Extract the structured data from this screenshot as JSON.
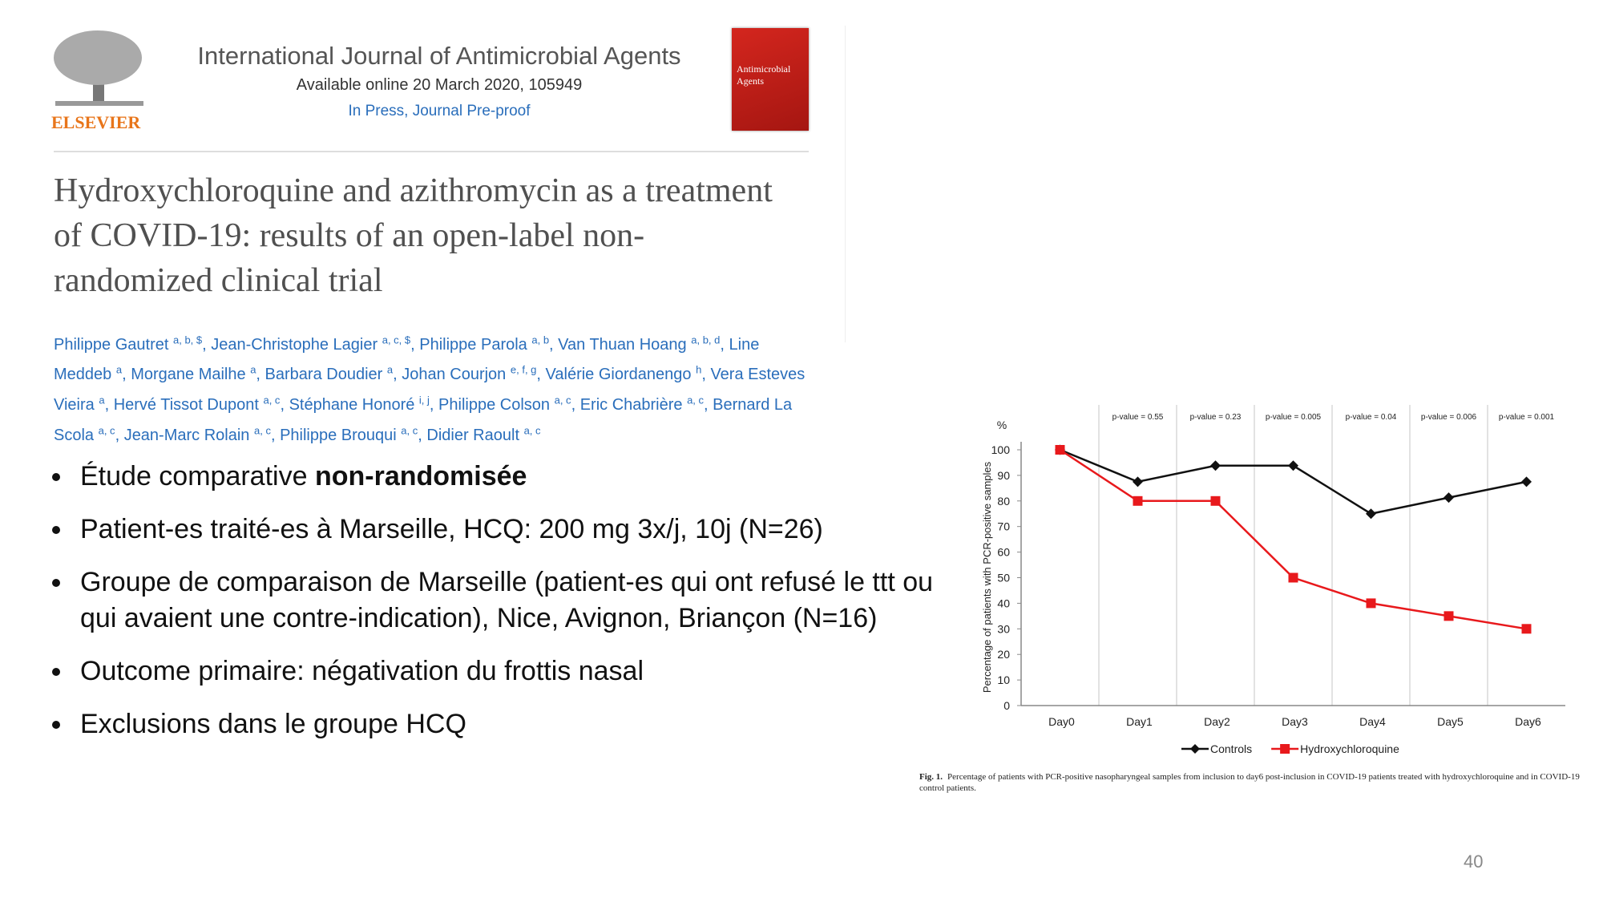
{
  "header": {
    "publisher": "ELSEVIER",
    "journal": "International Journal of Antimicrobial Agents",
    "availability": "Available online 20 March 2020, 105949",
    "status": "In Press, Journal Pre-proof",
    "cover_title": "Antimicrobial Agents"
  },
  "article": {
    "title": "Hydroxychloroquine and azithromycin as a treatment of COVID-19: results of an open-label non-randomized clinical trial",
    "authors": [
      {
        "name": "Philippe Gautret",
        "affiliations": "a, b, $"
      },
      {
        "name": "Jean-Christophe Lagier",
        "affiliations": "a, c, $"
      },
      {
        "name": "Philippe Parola",
        "affiliations": "a, b"
      },
      {
        "name": "Van Thuan Hoang",
        "affiliations": "a, b, d"
      },
      {
        "name": "Line Meddeb",
        "affiliations": "a"
      },
      {
        "name": "Morgane Mailhe",
        "affiliations": "a"
      },
      {
        "name": "Barbara Doudier",
        "affiliations": "a"
      },
      {
        "name": "Johan Courjon",
        "affiliations": "e, f, g"
      },
      {
        "name": "Valérie Giordanengo",
        "affiliations": "h"
      },
      {
        "name": "Vera Esteves Vieira",
        "affiliations": "a"
      },
      {
        "name": "Hervé Tissot Dupont",
        "affiliations": "a, c"
      },
      {
        "name": "Stéphane Honoré",
        "affiliations": "i, j"
      },
      {
        "name": "Philippe Colson",
        "affiliations": "a, c"
      },
      {
        "name": "Eric Chabrière",
        "affiliations": "a, c"
      },
      {
        "name": "Bernard La Scola",
        "affiliations": "a, c"
      },
      {
        "name": "Jean-Marc Rolain",
        "affiliations": "a, c"
      },
      {
        "name": "Philippe Brouqui",
        "affiliations": "a, c"
      },
      {
        "name": "Didier Raoult",
        "affiliations": "a, c"
      }
    ]
  },
  "bullets": [
    {
      "text": "Étude comparative",
      "emphasis": "non-randomisée"
    },
    {
      "text": "Patient-es traité-es à Marseille, HCQ: 200 mg 3x/j, 10j (N=26)"
    },
    {
      "text": "Groupe de comparaison de Marseille (patient-es qui ont refusé le ttt ou qui avaient une contre-indication), Nice, Avignon, Briançon (N=16)"
    },
    {
      "text": "Outcome primaire: négativation du frottis nasal"
    },
    {
      "text": "Exclusions dans le groupe HCQ"
    }
  ],
  "page_number": "40",
  "chart_data": {
    "type": "line",
    "y_unit": "%",
    "ylabel": "Percentage of patients with PCR-positive samples",
    "categories": [
      "Day0",
      "Day1",
      "Day2",
      "Day3",
      "Day4",
      "Day5",
      "Day6"
    ],
    "series": [
      {
        "name": "Controls",
        "color": "#111111",
        "marker": "diamond",
        "values": [
          100,
          87.5,
          93.8,
          93.8,
          75,
          81.3,
          87.5
        ]
      },
      {
        "name": "Hydroxychloroquine",
        "color": "#e8191c",
        "marker": "square",
        "values": [
          100,
          80,
          80,
          50,
          40,
          35,
          30
        ]
      }
    ],
    "ylim": [
      0,
      100
    ],
    "yticks": [
      0,
      10,
      20,
      30,
      40,
      50,
      60,
      70,
      80,
      90,
      100
    ],
    "annotations": [
      "p-value = 0.55",
      "p-value = 0.23",
      "p-value = 0.005",
      "p-value = 0.04",
      "p-value = 0.006",
      "p-value = 0.001"
    ],
    "vertical_grid": true,
    "legend": "bottom",
    "caption": {
      "label": "Fig. 1.",
      "text": "Percentage of patients with PCR-positive nasopharyngeal samples from inclusion to day6 post-inclusion in COVID-19 patients treated with hydroxychloroquine and in COVID-19 control patients."
    }
  }
}
